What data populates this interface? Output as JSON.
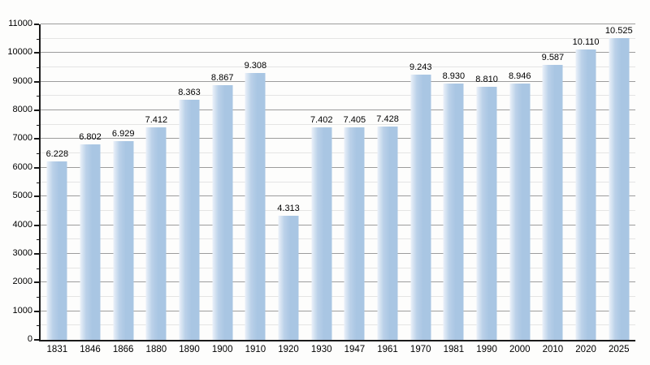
{
  "chart_data": {
    "type": "bar",
    "title": "",
    "xlabel": "",
    "ylabel": "",
    "categories": [
      "1831",
      "1846",
      "1866",
      "1880",
      "1890",
      "1900",
      "1910",
      "1920",
      "1930",
      "1947",
      "1961",
      "1970",
      "1981",
      "1990",
      "2000",
      "2010",
      "2020",
      "2025"
    ],
    "values": [
      6228,
      6802,
      6929,
      7412,
      8363,
      8867,
      9308,
      4313,
      7402,
      7405,
      7428,
      9243,
      8930,
      8810,
      8946,
      9587,
      10110,
      10525
    ],
    "value_labels": [
      "6.228",
      "6.802",
      "6.929",
      "7.412",
      "8.363",
      "8.867",
      "9.308",
      "4.313",
      "7.402",
      "7.405",
      "7.428",
      "9.243",
      "8.930",
      "8.810",
      "8.946",
      "9.587",
      "10.110",
      "10.525"
    ],
    "ylim": [
      0,
      11000
    ],
    "ytick_major": 1000,
    "ytick_minor": 500,
    "grid": true,
    "legend": "none",
    "colors": {
      "bar_fill": "#a9c6e3",
      "bar_fill_mid": "#bbd1e9",
      "bar_fill_light": "#eaf1f9",
      "grid_major": "#9c9c9c",
      "grid_minor": "#e4e4e4",
      "axis": "#1a1a1a",
      "background": "#fdfdfc",
      "label_text": "#000000"
    }
  }
}
